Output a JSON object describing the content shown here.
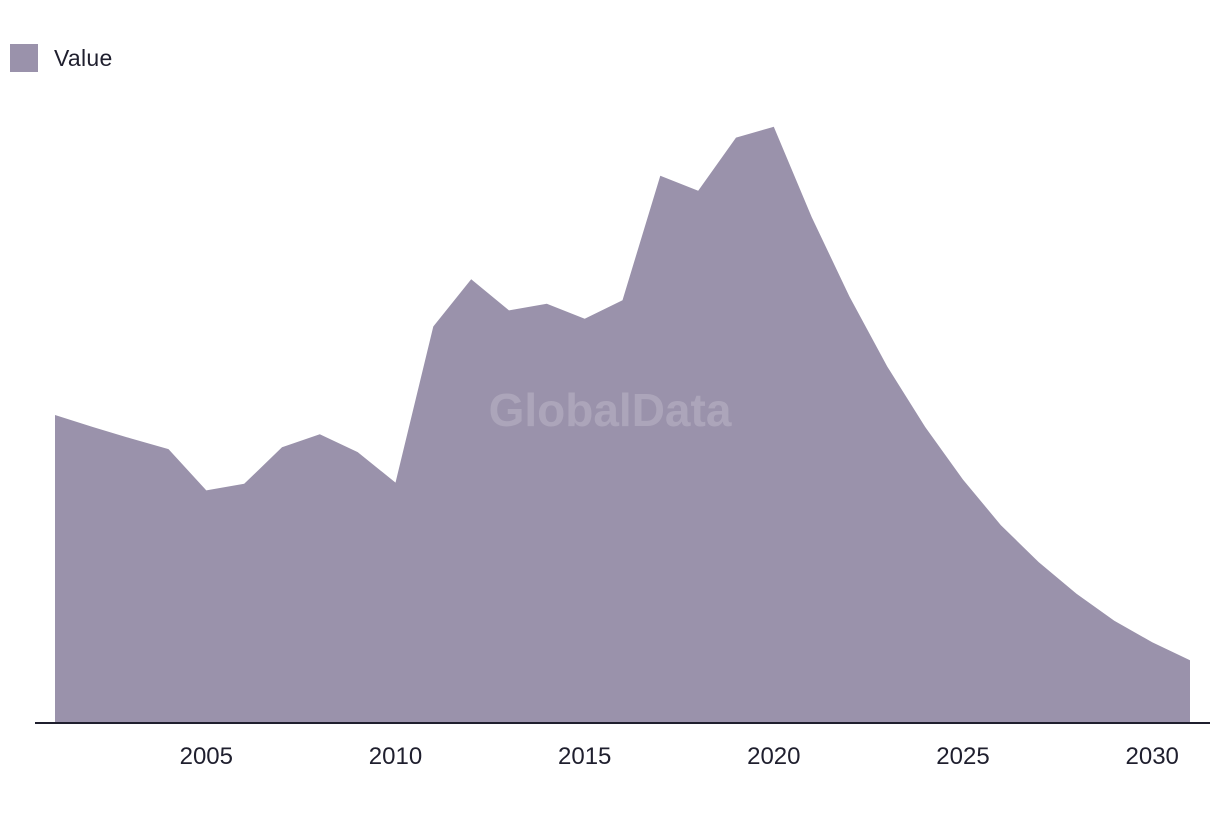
{
  "legend": {
    "label": "Value"
  },
  "watermark": "GlobalData",
  "colors": {
    "area": "#9a92ab",
    "axis": "#1f1f2e"
  },
  "chart_data": {
    "type": "area",
    "title": "",
    "xlabel": "",
    "ylabel": "",
    "x": [
      2001,
      2002,
      2003,
      2004,
      2005,
      2006,
      2007,
      2008,
      2009,
      2010,
      2011,
      2012,
      2013,
      2014,
      2015,
      2016,
      2017,
      2018,
      2019,
      2020,
      2021,
      2022,
      2023,
      2024,
      2025,
      2026,
      2027,
      2028,
      2029,
      2030,
      2031
    ],
    "series": [
      {
        "name": "Value",
        "values": [
          51.5,
          49.5,
          47.6,
          45.8,
          38.9,
          40.0,
          46.1,
          48.3,
          45.3,
          40.2,
          66.3,
          74.2,
          69.0,
          70.1,
          67.6,
          70.7,
          91.5,
          89.0,
          97.9,
          99.7,
          84.6,
          71.3,
          59.6,
          49.5,
          40.7,
          33.1,
          26.9,
          21.6,
          17.1,
          13.5,
          10.5
        ]
      }
    ],
    "xticks": [
      "2005",
      "2010",
      "2015",
      "2020",
      "2025",
      "2030"
    ],
    "xlim": [
      2001,
      2031
    ],
    "ylim": [
      0,
      100
    ],
    "grid": false,
    "legend_position": "top-left"
  }
}
